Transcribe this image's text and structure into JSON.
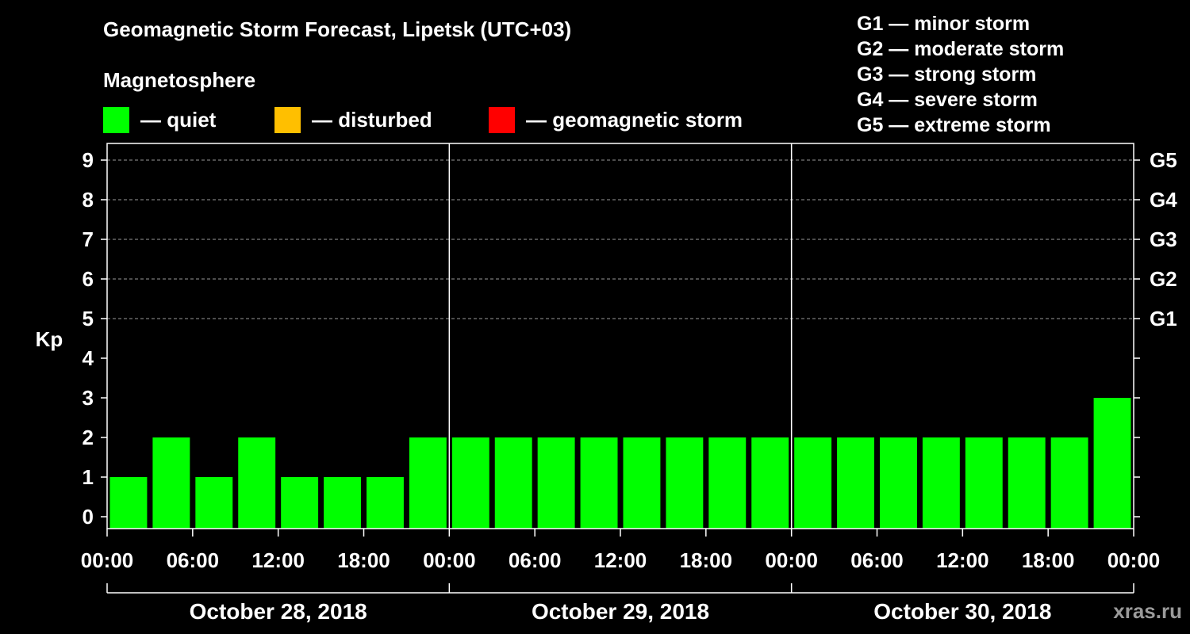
{
  "header": {
    "title": "Geomagnetic Storm Forecast, Lipetsk (UTC+03)",
    "magnetosphere_label": "Magnetosphere"
  },
  "legend": [
    {
      "label": "— quiet",
      "color": "#00ff00"
    },
    {
      "label": "— disturbed",
      "color": "#ffbf00"
    },
    {
      "label": "— geomagnetic storm",
      "color": "#ff0000"
    }
  ],
  "storm_scale": [
    "G1 — minor storm",
    "G2 — moderate storm",
    "G3 — strong storm",
    "G4 — severe storm",
    "G5 — extreme storm"
  ],
  "watermark": "xras.ru",
  "chart_data": {
    "type": "bar",
    "title": "Geomagnetic Storm Forecast, Lipetsk (UTC+03)",
    "ylabel": "Kp",
    "ylim": [
      0,
      9
    ],
    "yticks": [
      "0",
      "1",
      "2",
      "3",
      "4",
      "5",
      "6",
      "7",
      "8",
      "9"
    ],
    "right_ticks": [
      {
        "kp": 5,
        "label": "G1"
      },
      {
        "kp": 6,
        "label": "G2"
      },
      {
        "kp": 7,
        "label": "G3"
      },
      {
        "kp": 8,
        "label": "G4"
      },
      {
        "kp": 9,
        "label": "G5"
      }
    ],
    "grid_levels": [
      5,
      6,
      7,
      8,
      9
    ],
    "interval_hours": 3,
    "days": [
      "October 28, 2018",
      "October 29, 2018",
      "October 30, 2018"
    ],
    "time_ticks": [
      "00:00",
      "06:00",
      "12:00",
      "18:00",
      "00:00",
      "06:00",
      "12:00",
      "18:00",
      "00:00",
      "06:00",
      "12:00",
      "18:00",
      "00:00"
    ],
    "values": [
      1,
      2,
      1,
      2,
      1,
      1,
      1,
      2,
      2,
      2,
      2,
      2,
      2,
      2,
      2,
      2,
      2,
      2,
      2,
      2,
      2,
      2,
      2,
      3
    ],
    "bar_color": "#00ff00"
  }
}
